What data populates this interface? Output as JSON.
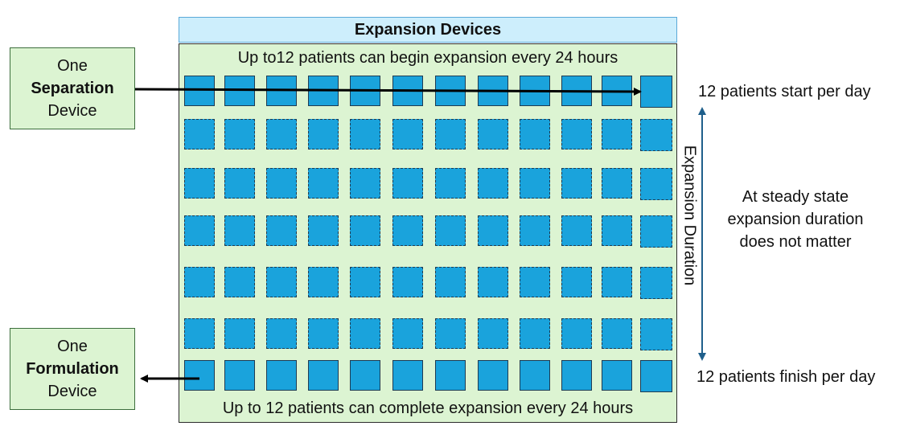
{
  "title": "Expansion Devices",
  "top_caption": "Up to12 patients can begin expansion every 24 hours",
  "bottom_caption": "Up to 12 patients can complete expansion every 24 hours",
  "separation_box": {
    "line1": "One",
    "line2": "Separation",
    "line3": "Device"
  },
  "formulation_box": {
    "line1": "One",
    "line2": "Formulation",
    "line3": "Device"
  },
  "right_notes": {
    "start": "12 patients start per day",
    "finish": "12 patients finish per day",
    "steady_line1": "At steady state",
    "steady_line2": "expansion duration",
    "steady_line3": "does not matter"
  },
  "duration_label": "Expansion Duration",
  "grid": {
    "rows": 7,
    "cols": 12,
    "solid_rows": [
      0,
      6
    ]
  },
  "colors": {
    "cell": "#1aa3dc",
    "panel": "#dcf4d2",
    "title_bg": "#cdeefc",
    "arrow_blue": "#1f5f8b"
  }
}
